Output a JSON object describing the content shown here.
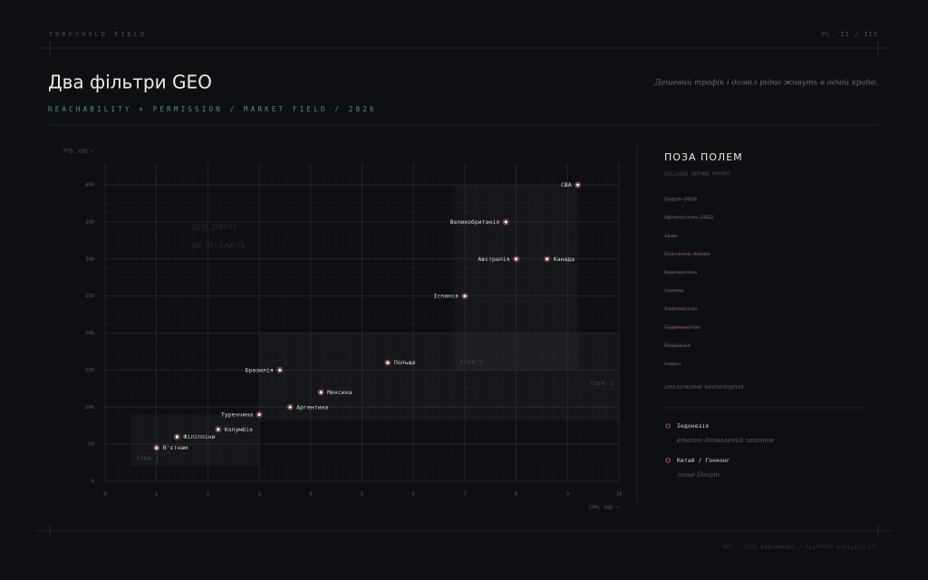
{
  "header": {
    "kicker": "THRESHOLD FIELD",
    "plate": "PL. II / III",
    "title": "Два фільтри GEO",
    "subtitle": "REACHABILITY × PERMISSION / MARKET FIELD / 2026",
    "note": "Дешевий трафік і дозвіл рідко живуть в одній країні."
  },
  "chart_data": {
    "type": "scatter",
    "x_label": "CPM, USD →",
    "y_label": "FTD, USD ↑",
    "annotation": [
      "ЦІЛІ ДОРОГІ",
      "НЕ ПУСКАЮТЬ"
    ],
    "labels": [
      "США",
      "Великобританія",
      "Австралія",
      "Канада",
      "Іспанія",
      "Польща",
      "Бразилія",
      "Мексика",
      "Аргентина",
      "Туреччина",
      "Колумбія",
      "Філіппіни",
      "В'єтнам"
    ],
    "x": [
      9.2,
      7.8,
      8.0,
      8.6,
      7.0,
      5.5,
      3.4,
      4.2,
      3.6,
      3.0,
      2.2,
      1.4,
      1.0
    ],
    "values": [
      400,
      350,
      300,
      300,
      250,
      160,
      150,
      120,
      100,
      90,
      70,
      60,
      45
    ],
    "color": "#ecebe4",
    "halo": "#c4506a",
    "xlim": [
      0,
      10
    ],
    "ylim": [
      0,
      400
    ],
    "xticks": [
      0,
      1,
      2,
      3,
      4,
      5,
      6,
      7,
      8,
      9,
      10
    ],
    "yticks": [
      0,
      50,
      100,
      150,
      200,
      250,
      300,
      350,
      400
    ],
    "grid": true,
    "zones": [
      {
        "label": "TIER 1",
        "xlim": [
          0.5,
          3
        ],
        "ylim": [
          20,
          90
        ]
      },
      {
        "label": "TIER 2",
        "xlim": [
          3,
          10
        ],
        "ylim": [
          80,
          200
        ]
      },
      {
        "label": "TIER 3",
        "xlim": [
          6.8,
          9.2
        ],
        "ylim": [
          150,
          400
        ]
      }
    ]
  },
  "sidebar": {
    "title": "ПОЗА ПОЛЕМ",
    "subtitle": "EXCLUDED BEFORE PAYOUT",
    "excluded": [
      "Індія 2026",
      "Афганістан 2022",
      "Іран",
      "Північна Корея",
      "Киргизстан",
      "Сомалі",
      "Узбекистан",
      "Таджикистан",
      "Йорданія",
      "Габон"
    ],
    "note": "англомовні недоступні",
    "partial": [
      {
        "name": "Індонезія",
        "note": "етапно дозволений законом"
      },
      {
        "name": "Китай / Гонконг",
        "note": "лише Douyin"
      }
    ]
  },
  "footer": "RPC · TIER BENCHMARKS / PLATFORM AVAILABILITY"
}
